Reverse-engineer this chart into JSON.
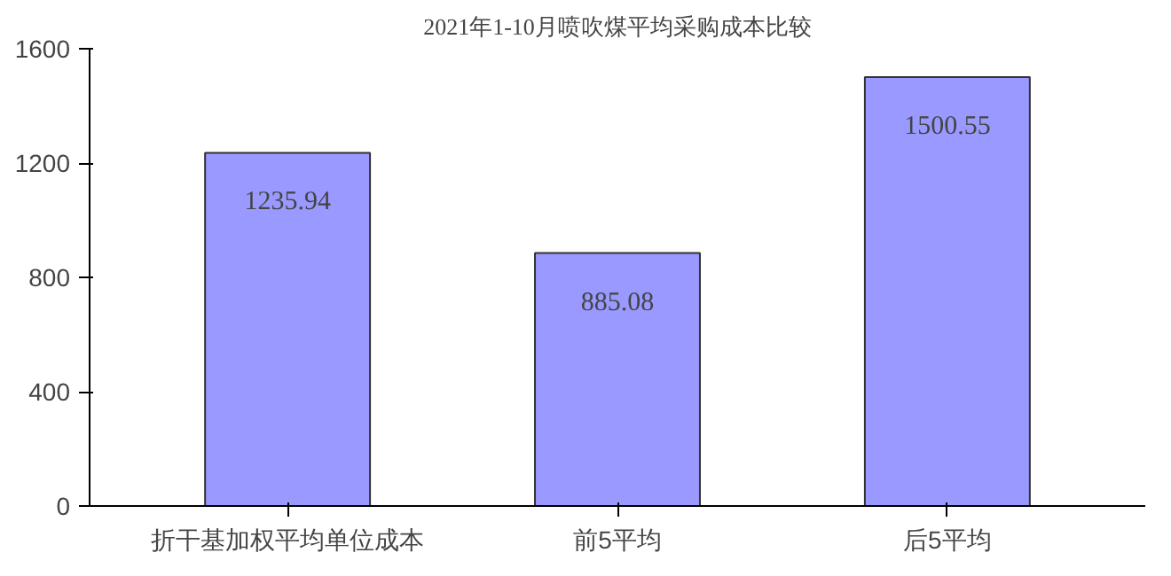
{
  "chart_data": {
    "type": "bar",
    "title": "2021年1-10月喷吹煤平均采购成本比较",
    "categories": [
      "折干基加权平均单位成本",
      "前5平均",
      "后5平均"
    ],
    "values": [
      1235.94,
      885.08,
      1500.55
    ],
    "color": "#9999ff",
    "ylim": [
      0,
      1600
    ],
    "yticks": [
      0,
      400,
      800,
      1200,
      1600
    ],
    "grid": false,
    "data_labels": true
  }
}
